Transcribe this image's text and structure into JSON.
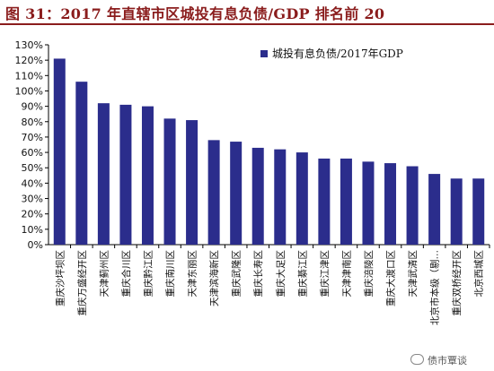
{
  "header": {
    "title": "图 31：2017 年直辖市区城投有息负债/GDP 排名前 20"
  },
  "watermark": {
    "text": "债市覃谈"
  },
  "colors": {
    "bar": "#2b2d8c",
    "title": "#8a1c1c",
    "axis": "#000000"
  },
  "chart_data": {
    "type": "bar",
    "title": "",
    "xlabel": "",
    "ylabel": "",
    "ylim": [
      0,
      130
    ],
    "yticks": [
      "0%",
      "10%",
      "20%",
      "30%",
      "40%",
      "50%",
      "60%",
      "70%",
      "80%",
      "90%",
      "100%",
      "110%",
      "120%",
      "130%"
    ],
    "legend": {
      "position": "top-right"
    },
    "grid": false,
    "categories": [
      "重庆沙坪坝区",
      "重庆万盛经开区",
      "天津蓟州区",
      "重庆合川区",
      "重庆黔江区",
      "重庆南川区",
      "天津东丽区",
      "天津滨海新区",
      "重庆武隆区",
      "重庆长寿区",
      "重庆大足区",
      "重庆綦江区",
      "重庆江津区",
      "天津津南区",
      "重庆涪陵区",
      "重庆大渡口区",
      "天津武清区",
      "北京市本级（剔…",
      "重庆双桥经开区",
      "北京西城区"
    ],
    "series": [
      {
        "name": "城投有息负债/2017年GDP",
        "values": [
          121,
          106,
          92,
          91,
          90,
          82,
          81,
          68,
          67,
          63,
          62,
          60,
          56,
          56,
          54,
          53,
          51,
          46,
          43,
          43
        ]
      }
    ]
  }
}
